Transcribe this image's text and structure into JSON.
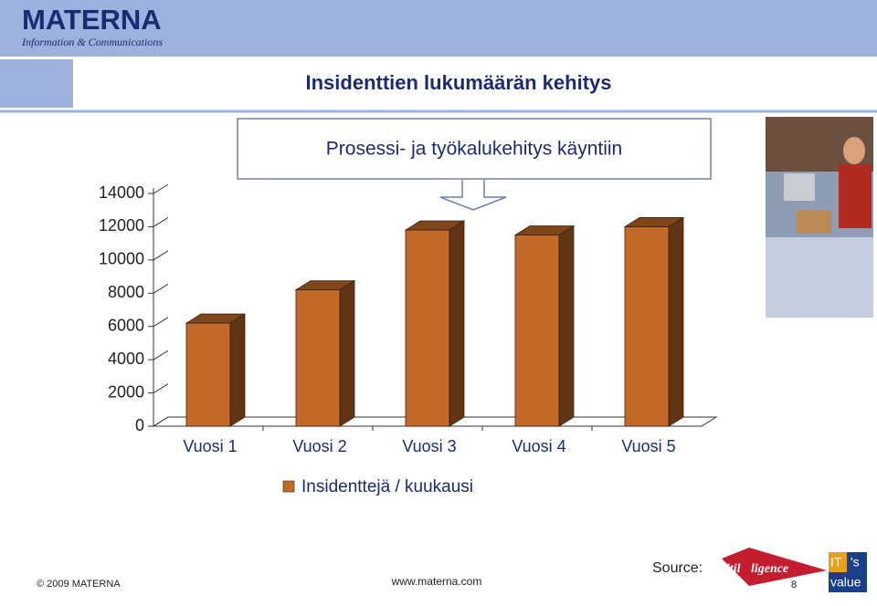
{
  "header": {
    "logo": "MATERNA",
    "logo_tagline": "Information & Communications"
  },
  "chart_data": {
    "type": "bar",
    "title": "Insidenttien lukumäärän kehitys",
    "annotation": "Prosessi- ja työkalukehitys käyntiin",
    "categories": [
      "Vuosi 1",
      "Vuosi 2",
      "Vuosi 3",
      "Vuosi 4",
      "Vuosi 5"
    ],
    "series": [
      {
        "name": "Insidenttejä / kuukausi",
        "color": "#c36a2a",
        "values": [
          6200,
          8200,
          11800,
          11500,
          12000
        ]
      }
    ],
    "ylim": [
      0,
      14000
    ],
    "yticks": [
      0,
      2000,
      4000,
      6000,
      8000,
      10000,
      12000,
      14000
    ],
    "grid": false
  },
  "footer": {
    "copyright": "© 2009 MATERNA",
    "url": "www.materna.com",
    "source": "Source:",
    "page": "8",
    "logo1_a": "itil",
    "logo1_b": "ligence",
    "logo2_a": "IT",
    "logo2_b": "'s",
    "logo2_c": "value"
  }
}
